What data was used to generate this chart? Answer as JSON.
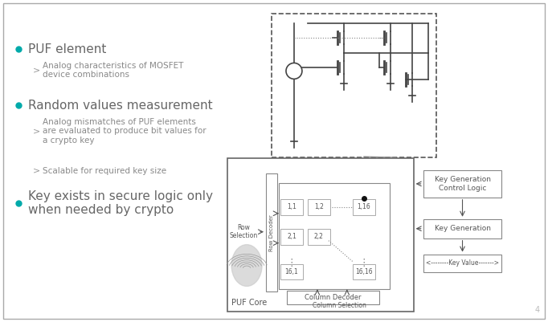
{
  "bg_color": "#ffffff",
  "border_color": "#aaaaaa",
  "text_color": "#555555",
  "bullet_color": "#00aaaa",
  "arrow_color": "#555555",
  "circuit_color": "#444444",
  "bullet1": "PUF element",
  "bullet1_sub1": "Analog characteristics of MOSFET\ndevice combinations",
  "bullet2": "Random values measurement",
  "bullet2_sub1": "Analog mismatches of PUF elements\nare evaluated to produce bit values for\na crypto key",
  "bullet2_sub2": "Scalable for required key size",
  "bullet3": "Key exists in secure logic only\nwhen needed by crypto",
  "key_gen_ctrl": "Key Generation\nControl Logic",
  "key_gen": "Key Generation",
  "key_val": "<--------Key Value------->",
  "puf_core_label": "PUF Core",
  "col_sel_label": "Column Selection",
  "col_dec_label": "Column Decoder",
  "row_dec_label": "Row Decoder",
  "row_sel_label": "Row\nSelection",
  "cells": [
    "1,1",
    "1,2",
    "1,16",
    "2,1",
    "2,2",
    "16,1",
    "16,16"
  ],
  "page_num": "4"
}
